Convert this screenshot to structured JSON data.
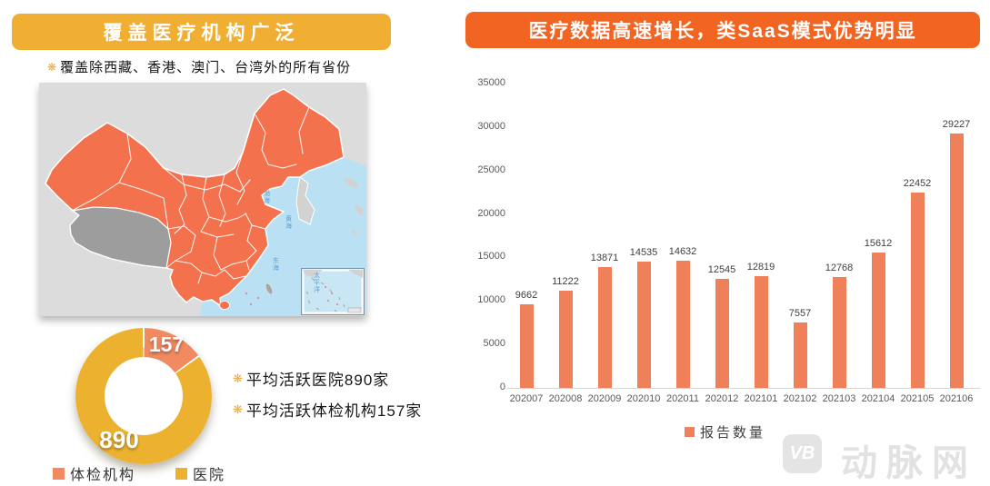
{
  "left_panel": {
    "title": "覆盖医疗机构广泛",
    "subtitle": {
      "icon": "❋",
      "text": "覆盖除西藏、香港、澳门、台湾外的所有省份"
    },
    "map": {
      "sea_labels": {
        "bohai": "渤海",
        "huanghai": "黄海",
        "donghai": "东海",
        "taipingyang": "太平洋"
      }
    },
    "notes": [
      {
        "icon": "❋",
        "text": "平均活跃医院890家"
      },
      {
        "icon": "❋",
        "text": "平均活跃体检机构157家"
      }
    ]
  },
  "right_panel": {
    "title": "医疗数据高速增长，类SaaS模式优势明显"
  },
  "chart_data": [
    {
      "type": "pie",
      "labels": [
        "体检机构",
        "医院"
      ],
      "values": [
        157,
        890
      ],
      "colors": [
        "#F18A60",
        "#ECB22F"
      ],
      "legend_position": "bottom"
    },
    {
      "type": "bar",
      "categories": [
        "202007",
        "202008",
        "202009",
        "202010",
        "202011",
        "202012",
        "202101",
        "202102",
        "202103",
        "202104",
        "202105",
        "202106"
      ],
      "values": [
        9662,
        11222,
        13871,
        14535,
        14632,
        12545,
        12819,
        7557,
        12768,
        15612,
        22452,
        29227
      ],
      "series": "报告数量",
      "bar_color": "#F0805A",
      "ylim": [
        0,
        35000
      ],
      "ytick_step": 5000,
      "grid": false,
      "data_labels": true,
      "legend_position": "bottom"
    }
  ],
  "colors": {
    "left_banner": "#F0AF33",
    "right_banner": "#F26422",
    "china_fill": "#F4714E",
    "tibet_fill": "#9D9D9D",
    "sea_fill": "#B9E1F3"
  },
  "watermark": {
    "logo_text": "VB",
    "brand_text": "动脉网"
  }
}
